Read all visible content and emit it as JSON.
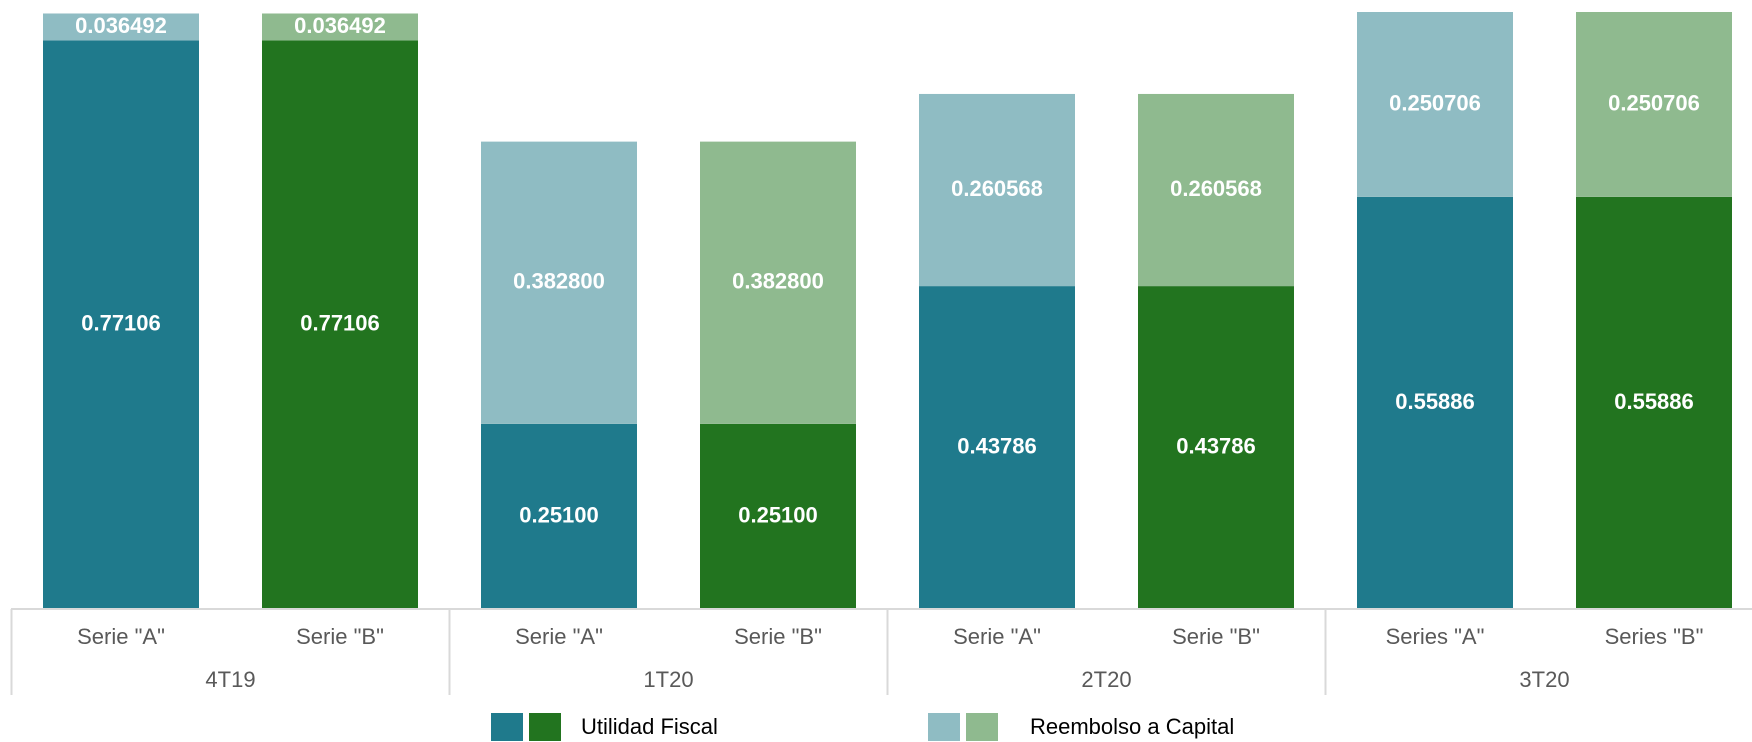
{
  "chart_data": {
    "type": "stacked_bar",
    "groups": [
      "4T19",
      "1T20",
      "2T20",
      "3T20"
    ],
    "categories": [
      "Serie \"A\"",
      "Serie \"B\"",
      "Serie \"A\"",
      "Serie \"B\"",
      "Serie \"A\"",
      "Serie \"B\"",
      "Series \"A\"",
      "Series \"B\""
    ],
    "series": [
      {
        "name": "Utilidad Fiscal",
        "colors": [
          "#1f7a8c",
          "#22741f"
        ],
        "values": [
          0.77106,
          0.77106,
          0.251,
          0.251,
          0.43786,
          0.43786,
          0.55886,
          0.55886
        ],
        "value_labels": [
          "0.77106",
          "0.77106",
          "0.25100",
          "0.25100",
          "0.43786",
          "0.43786",
          "0.55886",
          "0.55886"
        ]
      },
      {
        "name": "Reembolso a Capital",
        "colors": [
          "#8fbcc3",
          "#8fba8f"
        ],
        "values": [
          0.036492,
          0.036492,
          0.3828,
          0.3828,
          0.260568,
          0.260568,
          0.250706,
          0.250706
        ],
        "value_labels": [
          "0.036492",
          "0.036492",
          "0.382800",
          "0.382800",
          "0.260568",
          "0.260568",
          "0.250706",
          "0.250706"
        ]
      }
    ]
  }
}
